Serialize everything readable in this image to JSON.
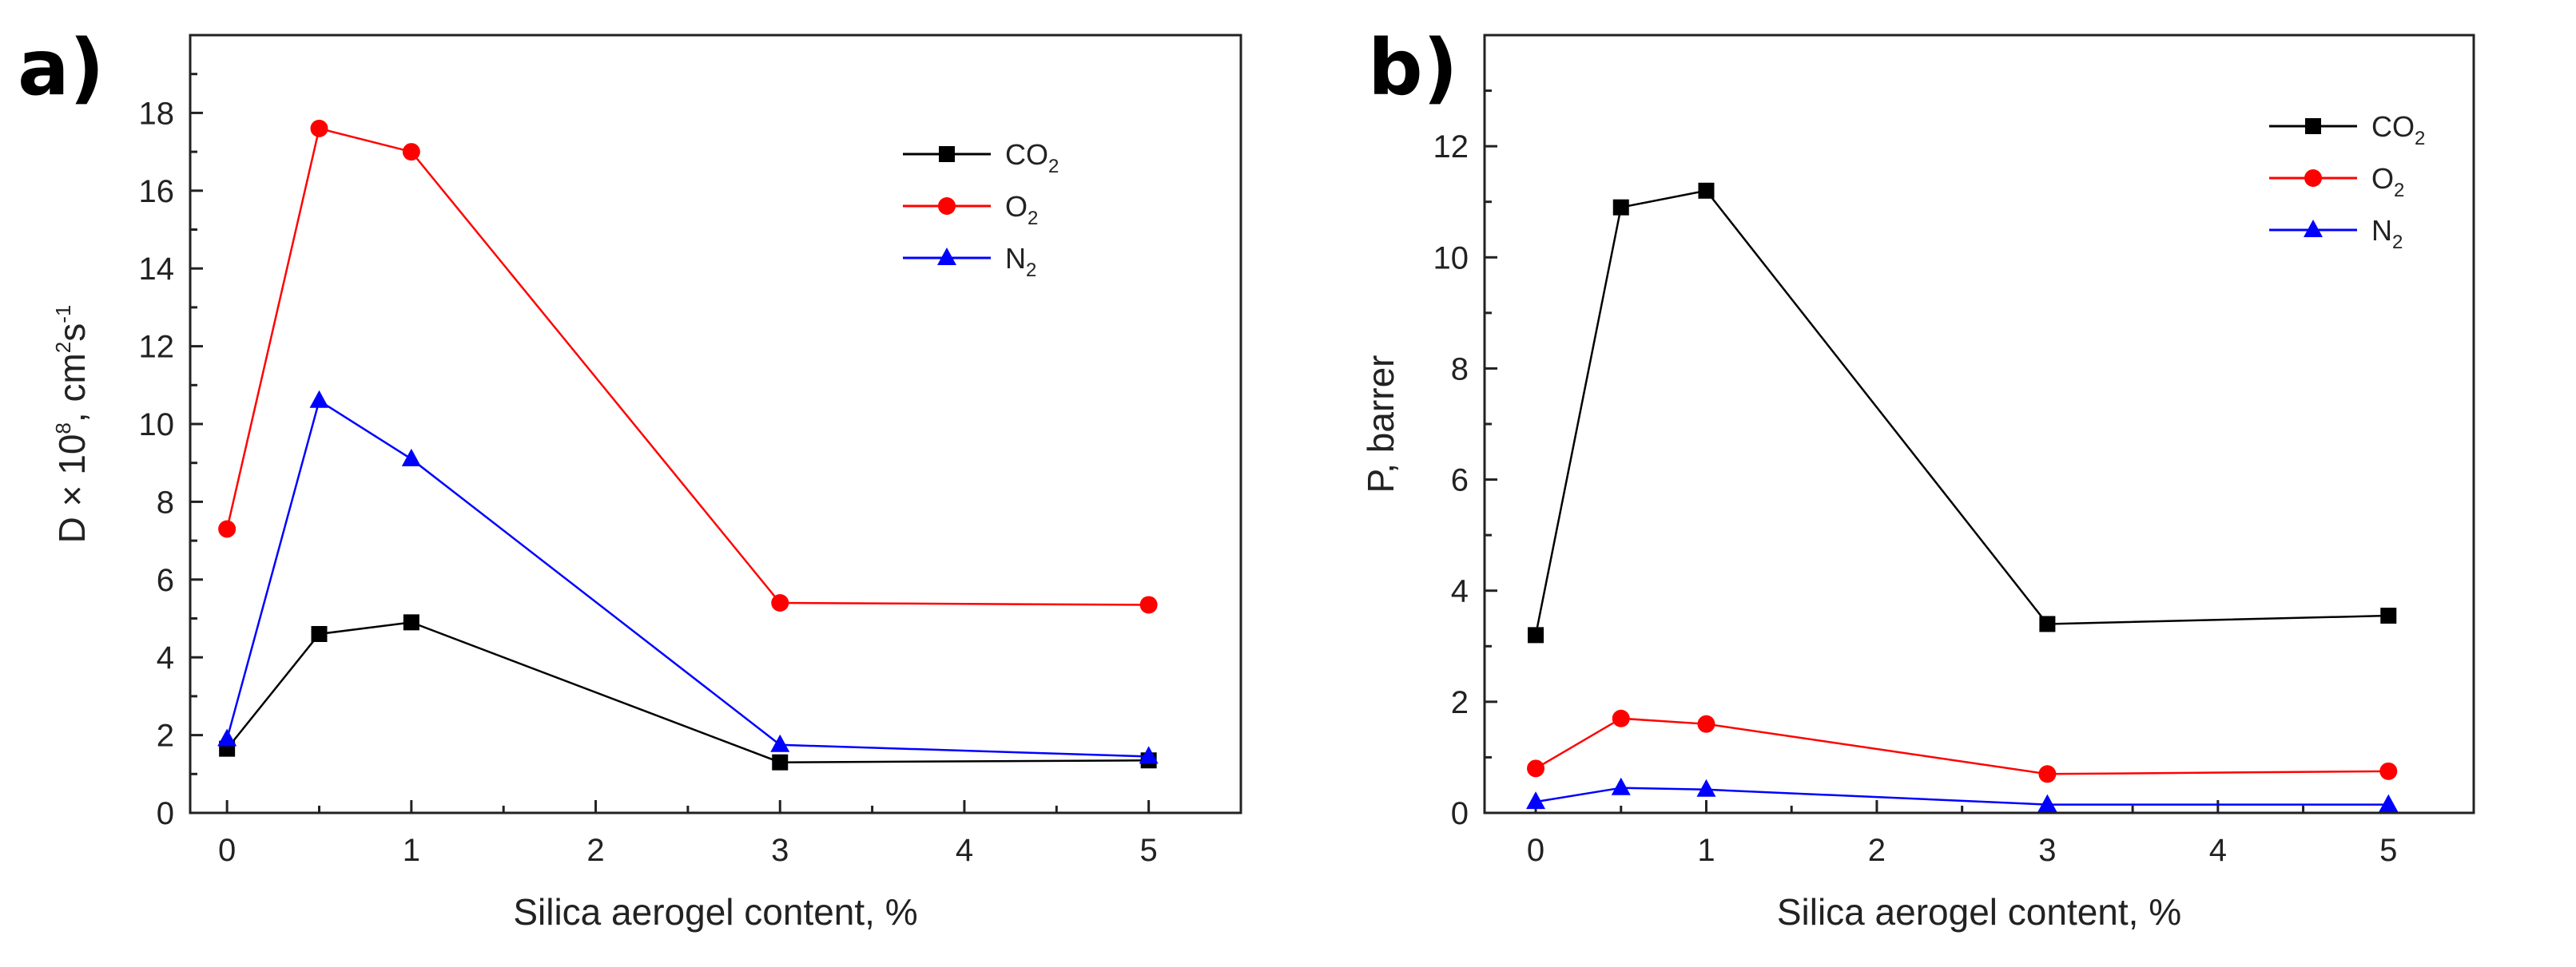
{
  "chart_data": [
    {
      "type": "line",
      "panel_label": "a)",
      "xlabel": "Silica aerogel content, %",
      "ylabel": {
        "parts": [
          {
            "text": "D × 10",
            "style": "normal"
          },
          {
            "text": "8",
            "style": "sup"
          },
          {
            "text": ", cm",
            "style": "normal"
          },
          {
            "text": "2",
            "style": "sup"
          },
          {
            "text": "s",
            "style": "normal"
          },
          {
            "text": "-1",
            "style": "sup"
          }
        ]
      },
      "x": [
        0,
        0.5,
        1,
        3,
        5
      ],
      "xlim": [
        -0.2,
        5.5
      ],
      "ylim": [
        0,
        20
      ],
      "xticks": [
        0,
        1,
        2,
        3,
        4,
        5
      ],
      "yticks": [
        0,
        2,
        4,
        6,
        8,
        10,
        12,
        14,
        16,
        18
      ],
      "legend_position": "top-right",
      "series": [
        {
          "name": "CO",
          "subscript": "2",
          "color": "#000000",
          "marker": "square",
          "values": [
            1.65,
            4.6,
            4.9,
            1.3,
            1.35
          ]
        },
        {
          "name": "O",
          "subscript": "2",
          "color": "#ff0000",
          "marker": "circle",
          "values": [
            7.3,
            17.6,
            17.0,
            5.4,
            5.35
          ]
        },
        {
          "name": "N",
          "subscript": "2",
          "color": "#0000ff",
          "marker": "triangle",
          "values": [
            1.9,
            10.6,
            9.1,
            1.75,
            1.45
          ]
        }
      ]
    },
    {
      "type": "line",
      "panel_label": "b)",
      "xlabel": "Silica aerogel content, %",
      "ylabel": {
        "parts": [
          {
            "text": "P, barrer",
            "style": "normal"
          }
        ]
      },
      "x": [
        0,
        0.5,
        1,
        3,
        5
      ],
      "xlim": [
        -0.3,
        5.5
      ],
      "ylim": [
        0,
        14
      ],
      "xticks": [
        0,
        1,
        2,
        3,
        4,
        5
      ],
      "yticks": [
        0,
        2,
        4,
        6,
        8,
        10,
        12
      ],
      "legend_position": "top-right",
      "series": [
        {
          "name": "CO",
          "subscript": "2",
          "color": "#000000",
          "marker": "square",
          "values": [
            3.2,
            10.9,
            11.2,
            3.4,
            3.55
          ]
        },
        {
          "name": "O",
          "subscript": "2",
          "color": "#ff0000",
          "marker": "circle",
          "values": [
            0.8,
            1.7,
            1.6,
            0.7,
            0.75
          ]
        },
        {
          "name": "N",
          "subscript": "2",
          "color": "#0000ff",
          "marker": "triangle",
          "values": [
            0.2,
            0.45,
            0.42,
            0.15,
            0.15
          ]
        }
      ]
    }
  ]
}
